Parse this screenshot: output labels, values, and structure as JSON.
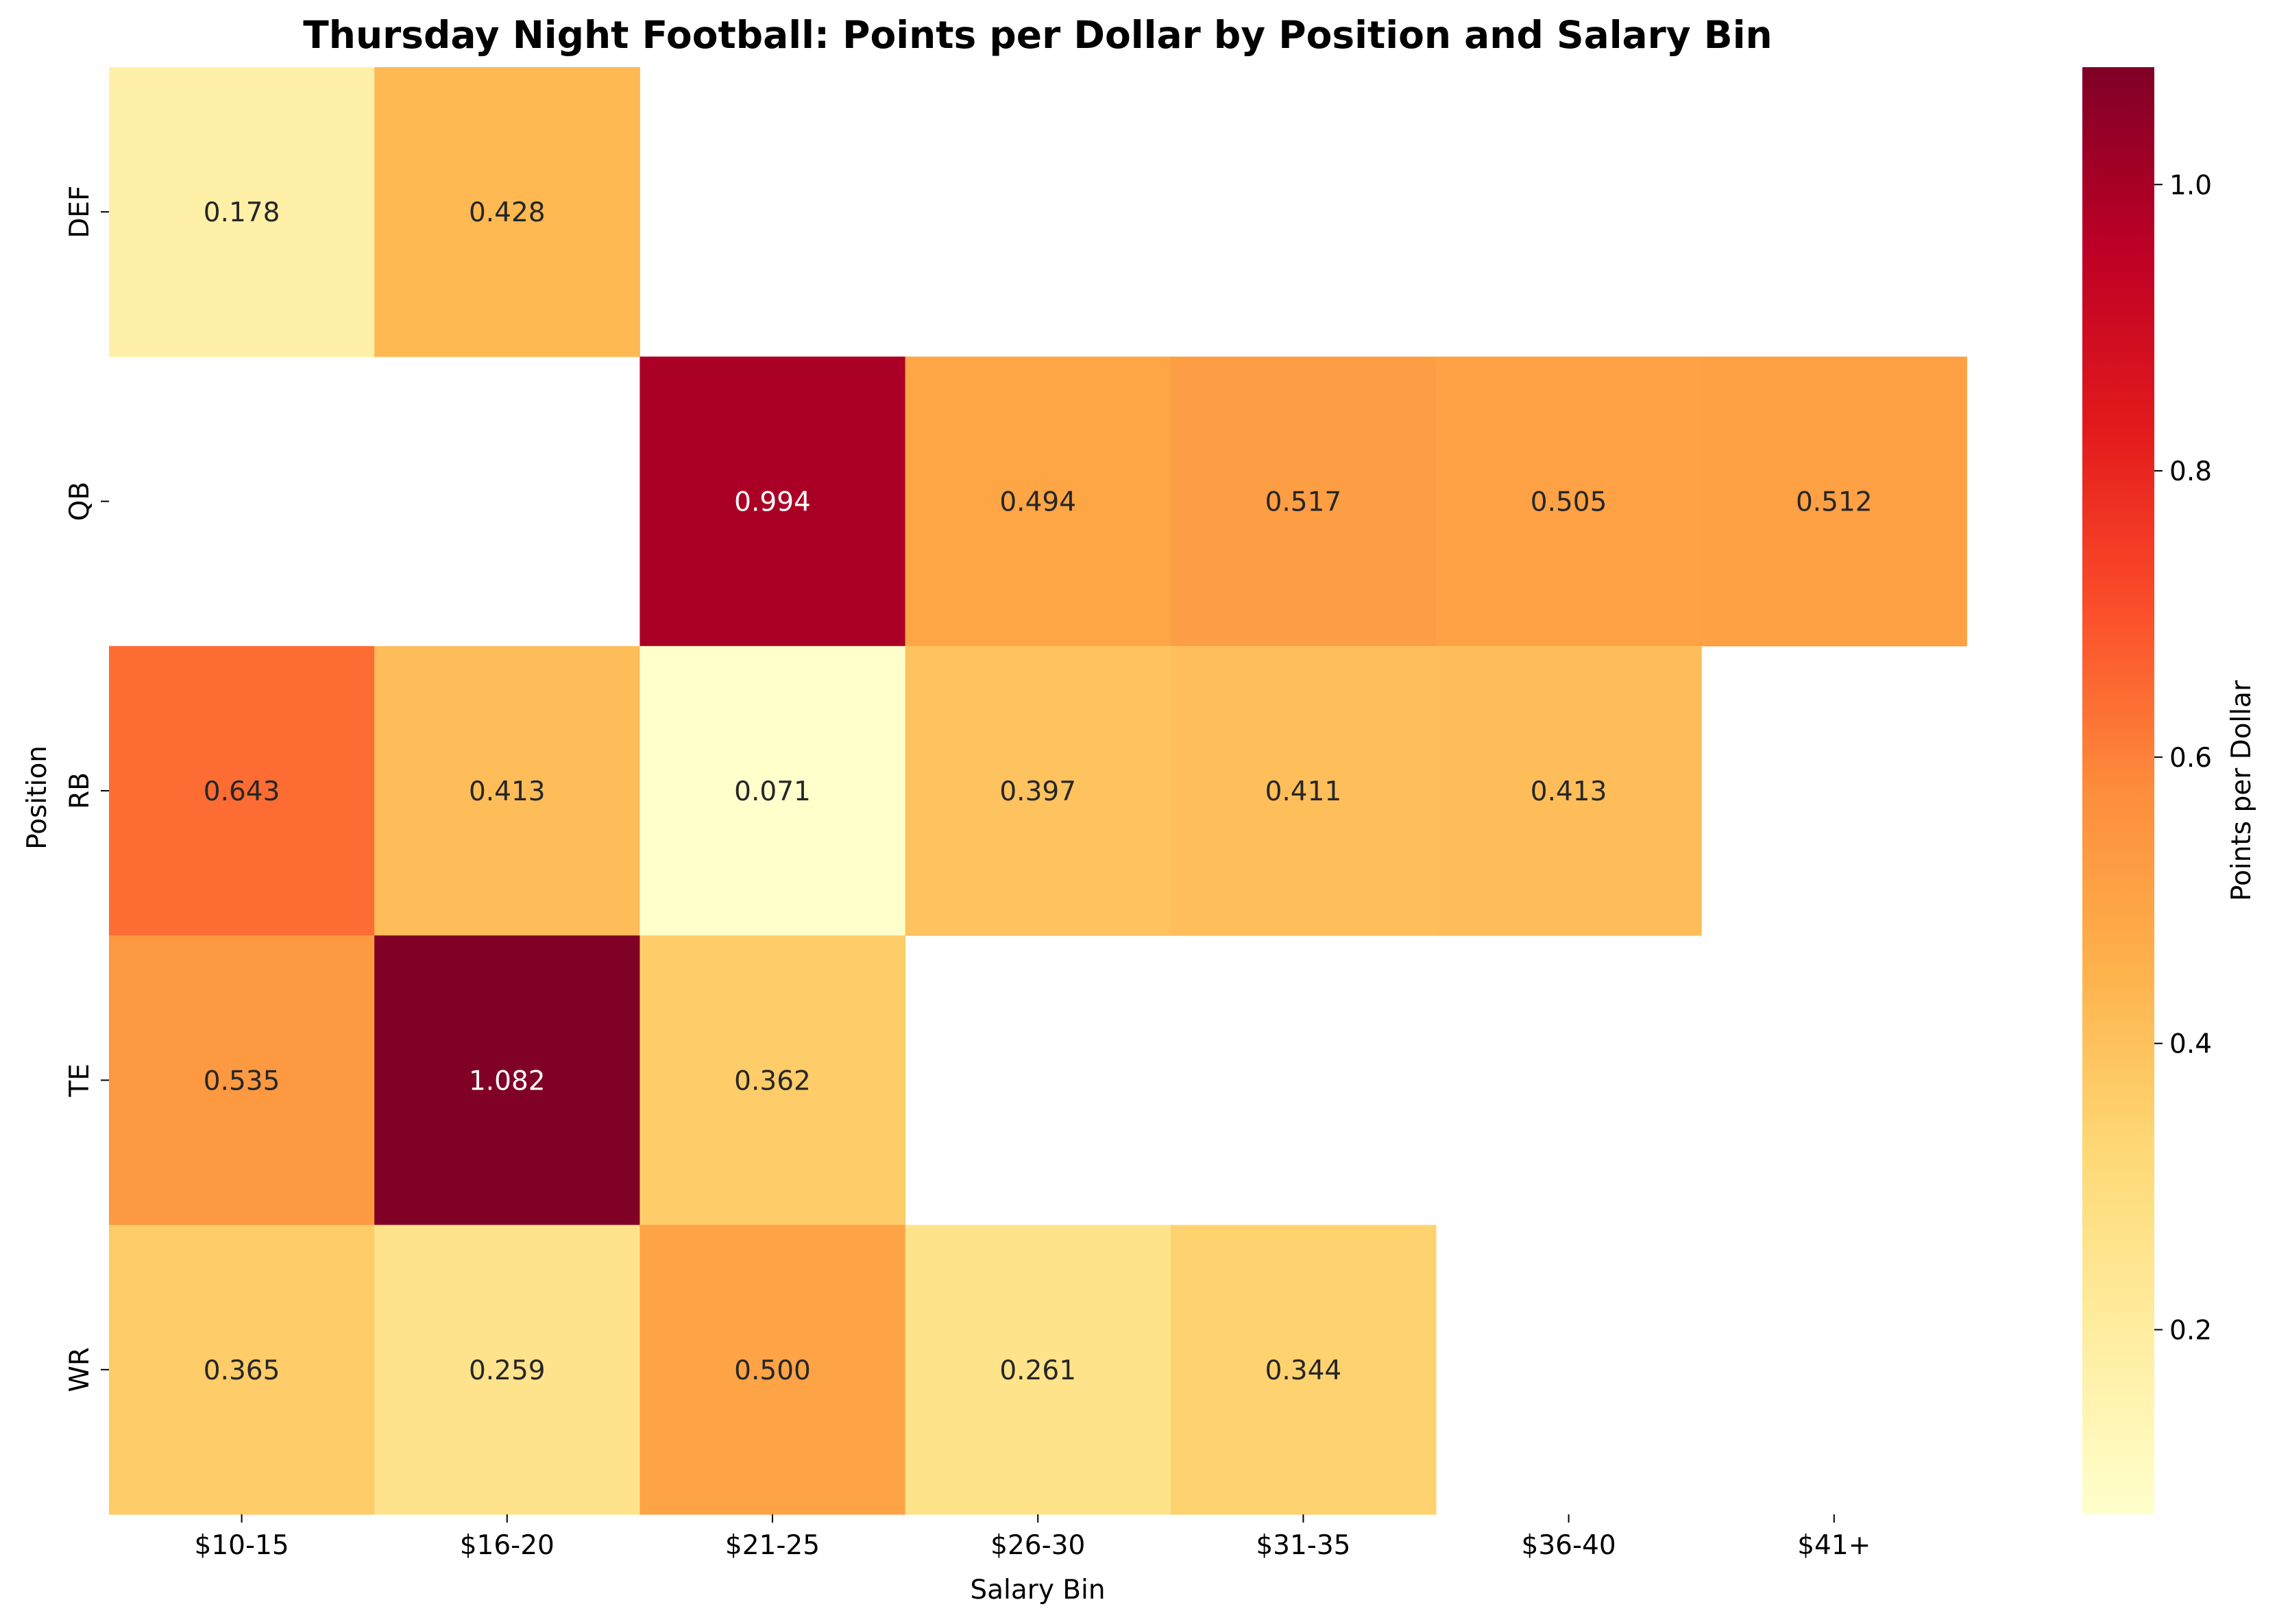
{
  "chart_data": {
    "type": "heatmap",
    "title": "Thursday Night Football: Points per Dollar by Position and Salary Bin",
    "xlabel": "Salary Bin",
    "ylabel": "Position",
    "x_categories": [
      "$10-15",
      "$16-20",
      "$21-25",
      "$26-30",
      "$31-35",
      "$36-40",
      "$41+"
    ],
    "y_categories": [
      "DEF",
      "QB",
      "RB",
      "TE",
      "WR"
    ],
    "values": [
      [
        0.178,
        0.428,
        null,
        null,
        null,
        null,
        null
      ],
      [
        null,
        null,
        0.994,
        0.494,
        0.517,
        0.505,
        0.512
      ],
      [
        0.643,
        0.413,
        0.071,
        0.397,
        0.411,
        0.413,
        null
      ],
      [
        0.535,
        1.082,
        0.362,
        null,
        null,
        null,
        null
      ],
      [
        0.365,
        0.259,
        0.5,
        0.261,
        0.344,
        null,
        null
      ]
    ],
    "value_format": "0.000",
    "colormap": "YlOrRd",
    "color_range": [
      0.071,
      1.082
    ],
    "colorbar": {
      "label": "Points per Dollar",
      "ticks": [
        0.2,
        0.4,
        0.6,
        0.8,
        1.0
      ],
      "tick_labels": [
        "0.2",
        "0.4",
        "0.6",
        "0.8",
        "1.0"
      ]
    },
    "grid": false
  }
}
